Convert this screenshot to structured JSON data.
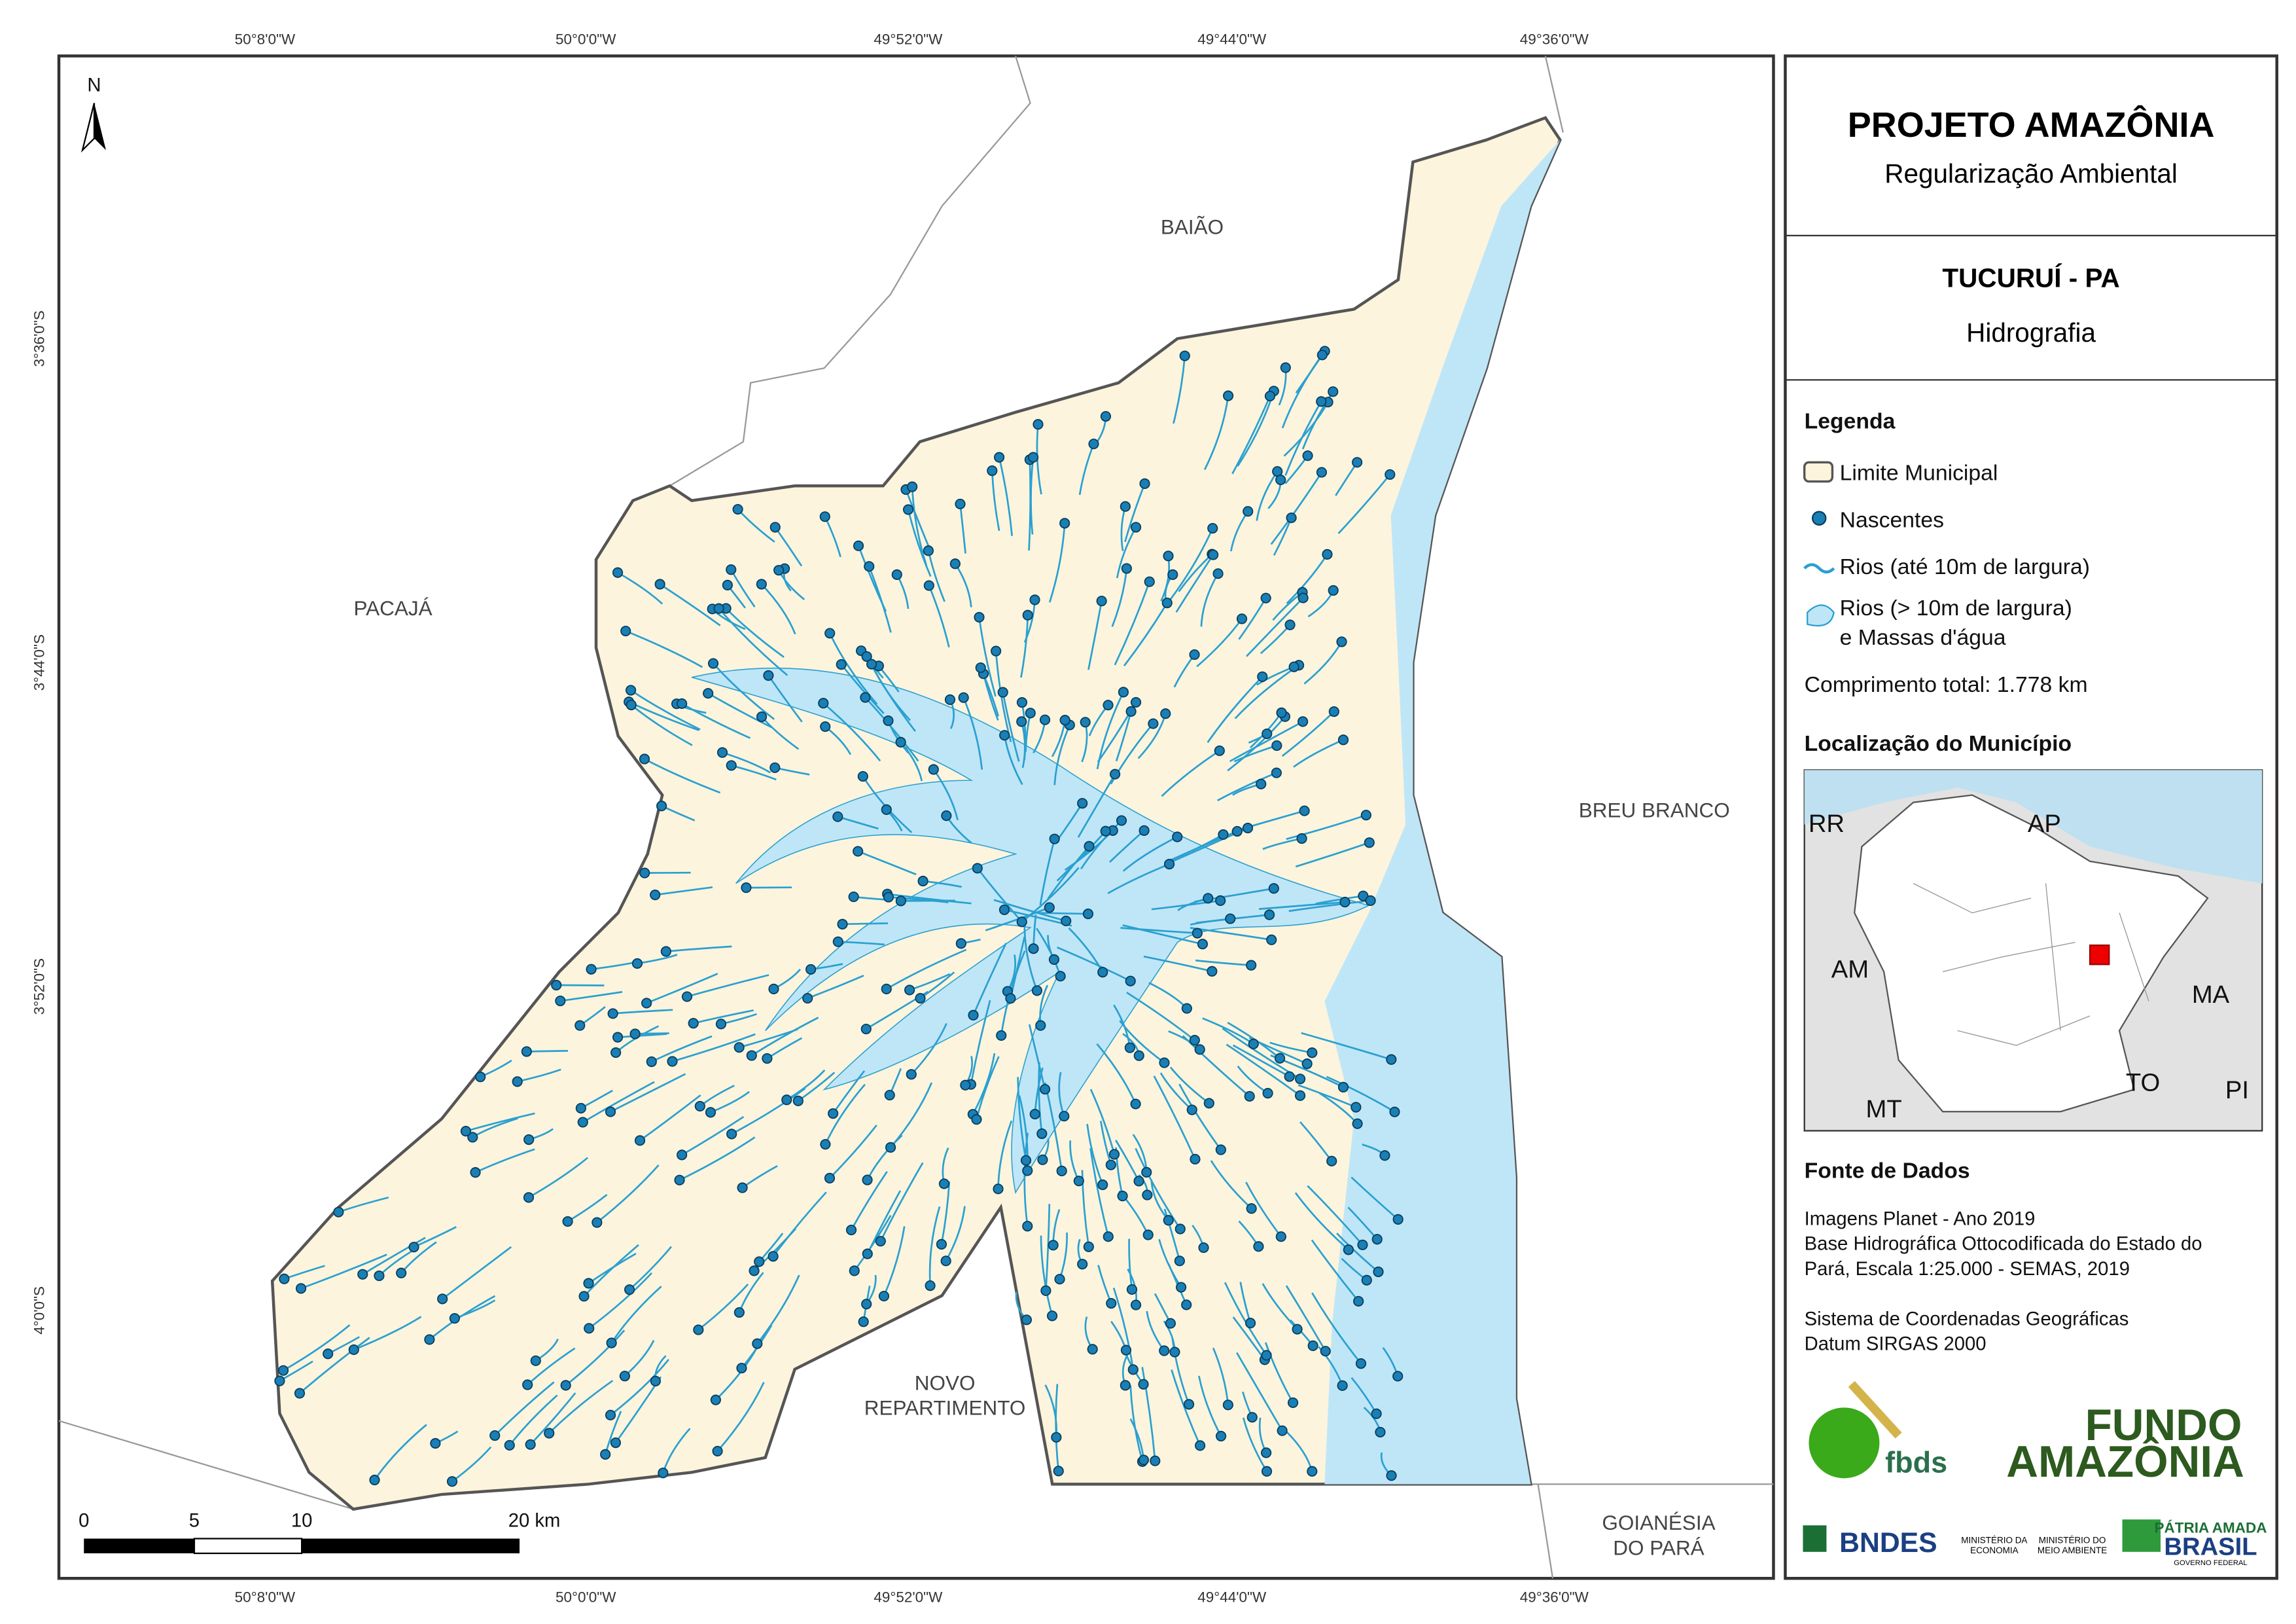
{
  "map": {
    "north": "N",
    "coordinates": {
      "top": [
        "50°8'0\"W",
        "50°0'0\"W",
        "49°52'0\"W",
        "49°44'0\"W",
        "49°36'0\"W"
      ],
      "bottom": [
        "50°8'0\"W",
        "50°0'0\"W",
        "49°52'0\"W",
        "49°44'0\"W",
        "49°36'0\"W"
      ],
      "left": [
        "3°36'0\"S",
        "3°44'0\"S",
        "3°52'0\"S",
        "4°0'0\"S"
      ]
    },
    "neighbors": [
      {
        "lines": [
          "BAIÃO"
        ]
      },
      {
        "lines": [
          "PACAJÁ"
        ]
      },
      {
        "lines": [
          "BREU BRANCO"
        ]
      },
      {
        "lines": [
          "NOVO",
          "REPARTIMENTO"
        ]
      },
      {
        "lines": [
          "GOIANÉSIA",
          "DO PARÁ"
        ]
      }
    ],
    "scale_bar": [
      "0",
      "5",
      "10",
      "20 km"
    ]
  },
  "panel": {
    "title": "PROJETO AMAZÔNIA",
    "subtitle": "Regularização Ambiental",
    "municipality": "TUCURUÍ - PA",
    "theme": "Hidrografia",
    "legend": {
      "title": "Legenda",
      "items": [
        [
          "Limite Municipal"
        ],
        [
          "Nascentes"
        ],
        [
          "Rios (até 10m de largura)"
        ],
        [
          "Rios (> 10m de largura)",
          "e Massas d'água"
        ]
      ],
      "total": "Comprimento total:  1.778 km"
    },
    "location": {
      "title": "Localização do Município",
      "labels": [
        "RR",
        "AP",
        "AM",
        "MA",
        "MT",
        "TO",
        "PI"
      ]
    },
    "sources": {
      "title": "Fonte de Dados",
      "lines": [
        "Imagens Planet - Ano 2019",
        "Base Hidrográfica Ottocodificada do Estado do",
        "Pará, Escala 1:25.000 - SEMAS, 2019",
        "",
        "Sistema de Coordenadas Geográficas",
        "Datum SIRGAS 2000"
      ]
    },
    "logos": [
      "fbds",
      "FUNDO",
      "AMAZÔNIA",
      "BNDES",
      "MINISTÉRIO DA",
      "ECONOMIA",
      "MINISTÉRIO DO",
      "MEIO AMBIENTE",
      "PÁTRIA AMADA",
      "BRASIL",
      "GOVERNO FEDERAL"
    ]
  }
}
